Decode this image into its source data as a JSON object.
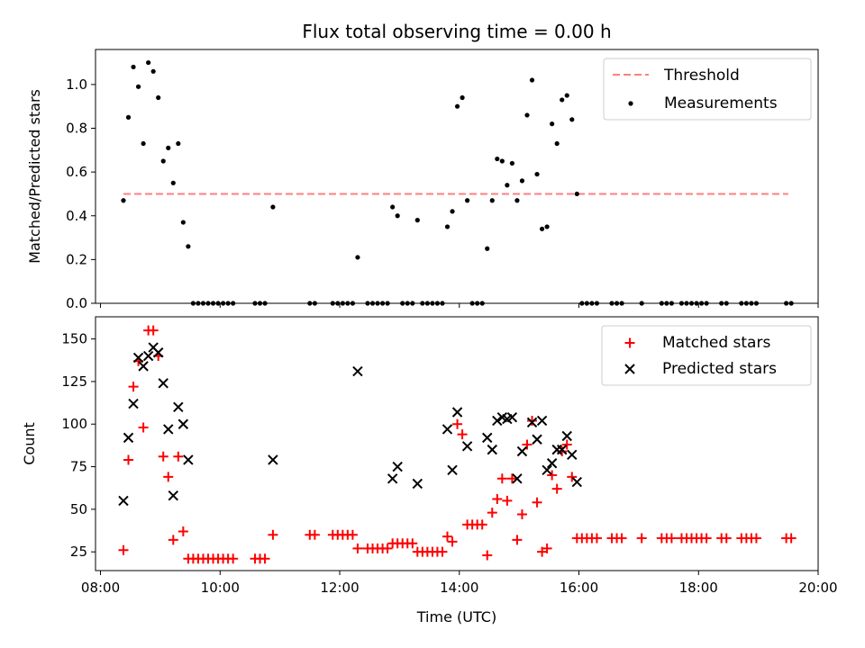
{
  "figure": {
    "title": "Flux total observing time = 0.00 h"
  },
  "chart_data": [
    {
      "type": "scatter",
      "panel": "top",
      "ylabel": "Matched/Predicted stars",
      "ylim": [
        0,
        1.16
      ],
      "xlim": [
        "07:55",
        "20:00"
      ],
      "yticks": [
        0.0,
        0.2,
        0.4,
        0.6,
        0.8,
        1.0
      ],
      "legend_position": "top-right",
      "series": [
        {
          "name": "Threshold",
          "kind": "dashed-line",
          "color": "#ff7f7f",
          "x": [
            "08:23",
            "19:30"
          ],
          "y": [
            0.5,
            0.5
          ]
        },
        {
          "name": "Measurements",
          "kind": "points",
          "color": "#000000",
          "x": [
            "08:23",
            "08:28",
            "08:33",
            "08:38",
            "08:43",
            "08:48",
            "08:53",
            "08:58",
            "09:03",
            "09:08",
            "09:13",
            "09:18",
            "09:23",
            "09:28",
            "09:33",
            "09:38",
            "09:43",
            "09:48",
            "09:53",
            "09:58",
            "10:03",
            "10:08",
            "10:13",
            "10:35",
            "10:40",
            "10:45",
            "10:53",
            "11:30",
            "11:35",
            "11:53",
            "11:58",
            "12:03",
            "12:08",
            "12:13",
            "12:18",
            "12:28",
            "12:33",
            "12:38",
            "12:43",
            "12:48",
            "12:53",
            "12:58",
            "13:03",
            "13:08",
            "13:13",
            "13:18",
            "13:23",
            "13:28",
            "13:33",
            "13:38",
            "13:43",
            "13:48",
            "13:53",
            "13:58",
            "14:03",
            "14:08",
            "14:13",
            "14:18",
            "14:23",
            "14:28",
            "14:33",
            "14:38",
            "14:43",
            "14:48",
            "14:53",
            "14:58",
            "15:03",
            "15:08",
            "15:13",
            "15:18",
            "15:23",
            "15:28",
            "15:33",
            "15:38",
            "15:43",
            "15:48",
            "15:53",
            "15:58",
            "16:03",
            "16:08",
            "16:13",
            "16:18",
            "16:33",
            "16:38",
            "16:43",
            "17:03",
            "17:23",
            "17:28",
            "17:33",
            "17:43",
            "17:48",
            "17:53",
            "17:58",
            "18:03",
            "18:08",
            "18:23",
            "18:28",
            "18:43",
            "18:48",
            "18:53",
            "18:58",
            "19:28",
            "19:33"
          ],
          "y": [
            0.47,
            0.85,
            1.08,
            0.99,
            0.73,
            1.1,
            1.06,
            0.94,
            0.65,
            0.71,
            0.55,
            0.73,
            0.37,
            0.26,
            0.0,
            0.0,
            0.0,
            0.0,
            0.0,
            0.0,
            0.0,
            0.0,
            0.0,
            0.0,
            0.0,
            0.0,
            0.44,
            0.0,
            0.0,
            0.0,
            0.0,
            0.0,
            0.0,
            0.0,
            0.21,
            0.0,
            0.0,
            0.0,
            0.0,
            0.0,
            0.44,
            0.4,
            0.0,
            0.0,
            0.0,
            0.38,
            0.0,
            0.0,
            0.0,
            0.0,
            0.0,
            0.35,
            0.42,
            0.9,
            0.94,
            0.47,
            0.0,
            0.0,
            0.0,
            0.25,
            0.47,
            0.66,
            0.65,
            0.54,
            0.64,
            0.47,
            0.56,
            0.86,
            1.02,
            0.59,
            0.34,
            0.35,
            0.82,
            0.73,
            0.93,
            0.95,
            0.84,
            0.5,
            0.0,
            0.0,
            0.0,
            0.0,
            0.0,
            0.0,
            0.0,
            0.0,
            0.0,
            0.0,
            0.0,
            0.0,
            0.0,
            0.0,
            0.0,
            0.0,
            0.0,
            0.0,
            0.0,
            0.0,
            0.0,
            0.0,
            0.0,
            0.0,
            0.0
          ]
        }
      ]
    },
    {
      "type": "scatter",
      "panel": "bottom",
      "xlabel": "Time (UTC)",
      "ylabel": "Count",
      "ylim": [
        14,
        163
      ],
      "xlim": [
        "07:55",
        "20:00"
      ],
      "yticks": [
        25,
        50,
        75,
        100,
        125,
        150
      ],
      "xticks": [
        "08:00",
        "10:00",
        "12:00",
        "14:00",
        "16:00",
        "18:00",
        "20:00"
      ],
      "legend_position": "top-right",
      "series": [
        {
          "name": "Matched stars",
          "kind": "plus",
          "color": "#ff0000",
          "x": [
            "08:23",
            "08:28",
            "08:33",
            "08:38",
            "08:43",
            "08:48",
            "08:53",
            "08:58",
            "09:03",
            "09:08",
            "09:13",
            "09:18",
            "09:23",
            "09:28",
            "09:33",
            "09:38",
            "09:43",
            "09:48",
            "09:53",
            "09:58",
            "10:03",
            "10:08",
            "10:13",
            "10:35",
            "10:40",
            "10:45",
            "10:53",
            "11:30",
            "11:35",
            "11:53",
            "11:58",
            "12:03",
            "12:08",
            "12:13",
            "12:18",
            "12:28",
            "12:33",
            "12:38",
            "12:43",
            "12:48",
            "12:53",
            "12:58",
            "13:03",
            "13:08",
            "13:13",
            "13:18",
            "13:23",
            "13:28",
            "13:33",
            "13:38",
            "13:43",
            "13:48",
            "13:53",
            "13:58",
            "14:03",
            "14:08",
            "14:13",
            "14:18",
            "14:23",
            "14:28",
            "14:33",
            "14:38",
            "14:43",
            "14:48",
            "14:53",
            "14:58",
            "15:03",
            "15:08",
            "15:13",
            "15:18",
            "15:23",
            "15:28",
            "15:33",
            "15:38",
            "15:43",
            "15:48",
            "15:53",
            "15:58",
            "16:03",
            "16:08",
            "16:13",
            "16:18",
            "16:33",
            "16:38",
            "16:43",
            "17:03",
            "17:23",
            "17:28",
            "17:33",
            "17:43",
            "17:48",
            "17:53",
            "17:58",
            "18:03",
            "18:08",
            "18:23",
            "18:28",
            "18:43",
            "18:48",
            "18:53",
            "18:58",
            "19:28",
            "19:33"
          ],
          "y": [
            26,
            79,
            122,
            137,
            98,
            155,
            155,
            140,
            81,
            69,
            32,
            81,
            37,
            21,
            21,
            21,
            21,
            21,
            21,
            21,
            21,
            21,
            21,
            21,
            21,
            21,
            35,
            35,
            35,
            35,
            35,
            35,
            35,
            35,
            27,
            27,
            27,
            27,
            27,
            27,
            30,
            30,
            30,
            30,
            30,
            25,
            25,
            25,
            25,
            25,
            25,
            34,
            31,
            100,
            94,
            41,
            41,
            41,
            41,
            23,
            48,
            56,
            68,
            55,
            68,
            32,
            47,
            88,
            102,
            54,
            25,
            27,
            70,
            62,
            84,
            88,
            69,
            33,
            33,
            33,
            33,
            33,
            33,
            33,
            33,
            33,
            33,
            33,
            33,
            33,
            33,
            33,
            33,
            33,
            33,
            33,
            33,
            33,
            33,
            33,
            33,
            33,
            33
          ]
        },
        {
          "name": "Predicted stars",
          "kind": "cross",
          "color": "#000000",
          "x": [
            "08:23",
            "08:28",
            "08:33",
            "08:38",
            "08:43",
            "08:48",
            "08:53",
            "08:58",
            "09:03",
            "09:08",
            "09:13",
            "09:18",
            "09:23",
            "09:28",
            "10:53",
            "12:18",
            "12:53",
            "12:58",
            "13:18",
            "13:48",
            "13:53",
            "13:58",
            "14:08",
            "14:28",
            "14:33",
            "14:38",
            "14:43",
            "14:48",
            "14:53",
            "14:58",
            "15:03",
            "15:13",
            "15:18",
            "15:23",
            "15:28",
            "15:33",
            "15:38",
            "15:43",
            "15:48",
            "15:53",
            "15:58"
          ],
          "y": [
            55,
            92,
            112,
            139,
            134,
            140,
            145,
            142,
            124,
            97,
            58,
            110,
            100,
            79,
            79,
            131,
            68,
            75,
            65,
            97,
            73,
            107,
            87,
            92,
            85,
            102,
            104,
            103,
            104,
            68,
            84,
            101,
            91,
            102,
            73,
            77,
            85,
            85,
            93,
            82,
            66
          ]
        }
      ]
    }
  ]
}
